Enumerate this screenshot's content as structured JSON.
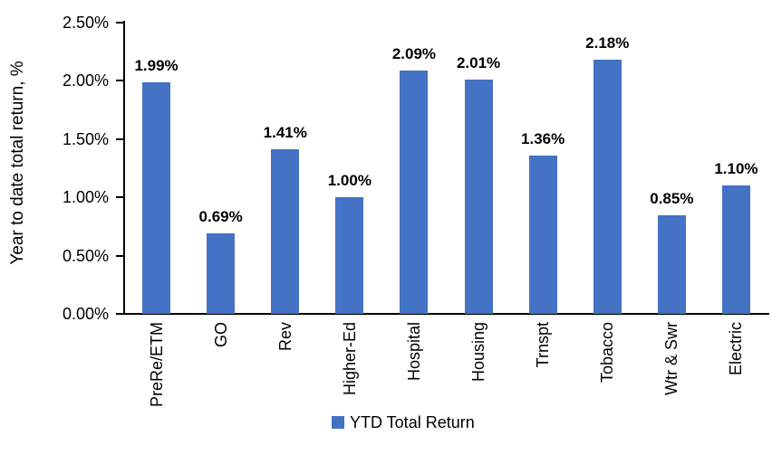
{
  "chart_data": {
    "type": "bar",
    "categories": [
      "PreRe/ETM",
      "GO",
      "Rev",
      "Higher-Ed",
      "Hospital",
      "Housing",
      "Trnspt",
      "Tobacco",
      "Wtr & Swr",
      "Electric"
    ],
    "values": [
      1.99,
      0.69,
      1.41,
      1.0,
      2.09,
      2.01,
      1.36,
      2.18,
      0.85,
      1.1
    ],
    "data_labels": [
      "1.99%",
      "0.69%",
      "1.41%",
      "1.00%",
      "2.09%",
      "2.01%",
      "1.36%",
      "2.18%",
      "0.85%",
      "1.10%"
    ],
    "title": "",
    "xlabel": "",
    "ylabel": "Year to date total return, %",
    "ylim": [
      0,
      2.5
    ],
    "yticks": [
      {
        "value": 0.0,
        "label": "0.00%"
      },
      {
        "value": 0.5,
        "label": "0.50%"
      },
      {
        "value": 1.0,
        "label": "1.00%"
      },
      {
        "value": 1.5,
        "label": "1.50%"
      },
      {
        "value": 2.0,
        "label": "2.00%"
      },
      {
        "value": 2.5,
        "label": "2.50%"
      }
    ],
    "grid": false,
    "bar_color": "#4472C4",
    "axis_color": "#000000",
    "legend_position": "bottom-center",
    "legend": [
      {
        "label": "YTD Total Return",
        "color": "#4472C4"
      }
    ]
  }
}
